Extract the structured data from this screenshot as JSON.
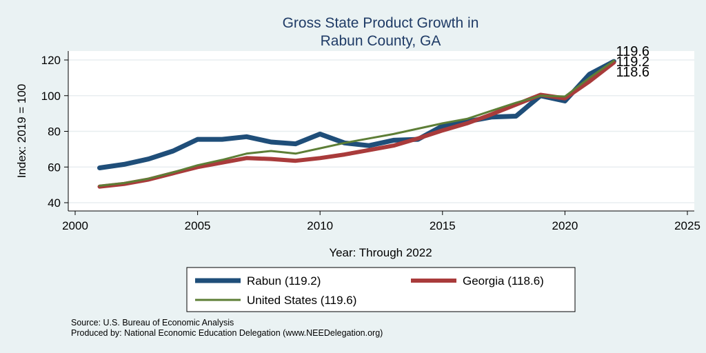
{
  "chart_data": {
    "type": "line",
    "title": [
      "Gross State Product Growth in",
      "Rabun County, GA"
    ],
    "xlabel": "Year: Through 2022",
    "ylabel": "Index: 2019 = 100",
    "xlim": [
      2000,
      2025
    ],
    "ylim": [
      40,
      120
    ],
    "xticks": [
      "2000",
      "2005",
      "2010",
      "2015",
      "2020",
      "2025"
    ],
    "yticks": [
      "40",
      "60",
      "80",
      "100",
      "120"
    ],
    "grid": true,
    "legend_position": "bottom",
    "x": [
      2001,
      2002,
      2003,
      2004,
      2005,
      2006,
      2007,
      2008,
      2009,
      2010,
      2011,
      2012,
      2013,
      2014,
      2015,
      2016,
      2017,
      2018,
      2019,
      2020,
      2021,
      2022
    ],
    "series": [
      {
        "name": "Rabun",
        "legend": "Rabun  (119.2)",
        "color": "#1f4e79",
        "width": 7,
        "values": [
          59.5,
          61.5,
          64.5,
          69,
          75.5,
          75.5,
          77,
          74,
          73,
          78.5,
          73.5,
          72,
          75,
          75.5,
          83,
          85.5,
          88,
          88.5,
          100,
          97,
          112,
          119.2
        ]
      },
      {
        "name": "Georgia",
        "legend": "Georgia (118.6)",
        "color": "#a93b3b",
        "width": 6,
        "values": [
          49,
          50.5,
          53,
          56.5,
          60,
          62.5,
          65,
          64.5,
          63.5,
          65,
          67,
          69.5,
          72,
          76,
          80.5,
          84.5,
          89.5,
          95,
          100.5,
          98.5,
          108,
          118.6
        ]
      },
      {
        "name": "United States",
        "legend": "United States (119.6)",
        "color": "#5d7e36",
        "width": 3,
        "values": [
          49.5,
          51,
          53.5,
          57,
          61,
          64,
          67.5,
          69,
          67.5,
          70.5,
          73.5,
          76,
          78.5,
          81.5,
          84.5,
          87,
          91.5,
          96,
          100,
          99.5,
          110,
          119.6
        ]
      }
    ],
    "end_labels": [
      "119.6",
      "119.2",
      "118.6"
    ],
    "notes": [
      "Source: U.S. Bureau of Economic Analysis",
      "Produced by: National Economic Education Delegation (www.NEEDelegation.org)"
    ]
  }
}
